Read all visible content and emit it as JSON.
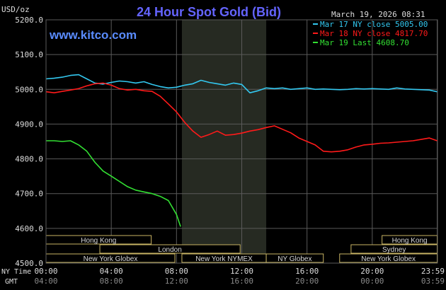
{
  "header": {
    "unit": "USD/oz",
    "title": "24 Hour Spot Gold (Bid)",
    "date": "March 19, 2026 08:31",
    "brand": "www.kitco.com"
  },
  "legend": [
    {
      "label": "Mar 17 NY close 5005.00",
      "color": "#33c8f0"
    },
    {
      "label": "Mar 18 NY close 4817.70",
      "color": "#ff1a1a"
    },
    {
      "label": "Mar 19 Last 4608.70",
      "color": "#33e033"
    }
  ],
  "time_axis": {
    "ny_label": "NY Time",
    "gmt_label": "GMT",
    "ny_ticks": [
      "00:00",
      "04:00",
      "08:00",
      "12:00",
      "16:00",
      "20:00",
      "23:59"
    ],
    "gmt_ticks": [
      "04:00",
      "08:00",
      "12:00",
      "16:00",
      "20:00",
      "00:00",
      "03:59"
    ]
  },
  "sessions": [
    {
      "label": "Hong Kong",
      "start": 0.0,
      "end": 6.45,
      "row": 0
    },
    {
      "label": "Hong Kong",
      "start": 20.6,
      "end": 23.98,
      "row": 0
    },
    {
      "label": "London",
      "start": 3.3,
      "end": 11.9,
      "row": 1
    },
    {
      "label": "Sydney",
      "start": 18.7,
      "end": 23.98,
      "row": 1
    },
    {
      "label": "New York Globex",
      "start": 0.0,
      "end": 7.9,
      "row": 2
    },
    {
      "label": "New York NYMEX",
      "start": 8.33,
      "end": 13.5,
      "row": 2
    },
    {
      "label": "NY Globex",
      "start": 13.5,
      "end": 17.0,
      "row": 2
    },
    {
      "label": "New York Globex",
      "start": 18.0,
      "end": 23.98,
      "row": 2
    }
  ],
  "colors": {
    "background": "#000000",
    "grid": "#5a5a5a",
    "shade": "#262a22",
    "axis_text": "#dddddd",
    "title": "#6464ff",
    "brand": "#5a8cff",
    "session_border": "#c8b464",
    "session_text": "#d8d8d8"
  },
  "chart_data": {
    "type": "line",
    "xlabel": "NY Time",
    "ylabel": "USD/oz",
    "ylim": [
      4500,
      5200
    ],
    "xlim": [
      0,
      24
    ],
    "y_ticks": [
      "5200.0",
      "5100.0",
      "5000.0",
      "4900.0",
      "4800.0",
      "4700.0",
      "4600.0",
      "4500.0"
    ],
    "shaded_hours": [
      8.33,
      13.5
    ],
    "grid": true,
    "legend_position": "top-right",
    "series": [
      {
        "name": "Mar 17 NY close 5005.00",
        "color": "#33c8f0",
        "x": [
          0,
          0.5,
          1.0,
          1.5,
          2.0,
          2.5,
          3.0,
          3.5,
          4.0,
          4.5,
          5.0,
          5.5,
          6.0,
          6.5,
          7.0,
          7.5,
          8.0,
          8.5,
          9.0,
          9.5,
          10.0,
          10.5,
          11.0,
          11.5,
          12.0,
          12.5,
          13.0,
          13.5,
          14.0,
          14.5,
          15.0,
          15.5,
          16.0,
          16.5,
          17.0,
          17.5,
          18.0,
          18.5,
          19.0,
          19.5,
          20.0,
          20.5,
          21.0,
          21.5,
          22.0,
          22.5,
          23.0,
          23.5,
          23.98
        ],
        "y": [
          5030,
          5032,
          5035,
          5040,
          5042,
          5030,
          5018,
          5015,
          5020,
          5024,
          5022,
          5018,
          5022,
          5014,
          5008,
          5004,
          5006,
          5012,
          5016,
          5026,
          5020,
          5016,
          5012,
          5018,
          5014,
          4990,
          4996,
          5004,
          5002,
          5004,
          5000,
          5002,
          5004,
          5000,
          5001,
          5000,
          4999,
          5000,
          5002,
          5001,
          5002,
          5001,
          5000,
          5004,
          5001,
          5000,
          4999,
          4998,
          4993
        ]
      },
      {
        "name": "Mar 18 NY close 4817.70",
        "color": "#ff1a1a",
        "x": [
          0,
          0.5,
          1.0,
          1.5,
          2.0,
          2.5,
          3.0,
          3.5,
          4.0,
          4.5,
          5.0,
          5.5,
          6.0,
          6.5,
          7.0,
          7.5,
          8.0,
          8.5,
          9.0,
          9.5,
          10.0,
          10.5,
          11.0,
          11.5,
          12.0,
          12.5,
          13.0,
          13.5,
          14.0,
          14.5,
          15.0,
          15.5,
          16.0,
          16.5,
          17.0,
          17.5,
          18.0,
          18.5,
          19.0,
          19.5,
          20.0,
          20.5,
          21.0,
          21.5,
          22.0,
          22.5,
          23.0,
          23.5,
          23.98
        ],
        "y": [
          4993,
          4990,
          4994,
          4998,
          5002,
          5010,
          5016,
          5018,
          5012,
          5002,
          4998,
          5000,
          4996,
          4994,
          4980,
          4958,
          4935,
          4905,
          4880,
          4862,
          4870,
          4880,
          4868,
          4870,
          4874,
          4880,
          4884,
          4890,
          4895,
          4885,
          4875,
          4860,
          4850,
          4840,
          4822,
          4820,
          4822,
          4826,
          4834,
          4840,
          4842,
          4845,
          4846,
          4848,
          4850,
          4852,
          4856,
          4860,
          4852
        ]
      },
      {
        "name": "Mar 19 Last 4608.70",
        "color": "#33e033",
        "x": [
          0,
          0.5,
          1.0,
          1.5,
          2.0,
          2.5,
          3.0,
          3.5,
          4.0,
          4.5,
          5.0,
          5.5,
          6.0,
          6.5,
          7.0,
          7.5,
          8.0,
          8.25
        ],
        "y": [
          4852,
          4852,
          4850,
          4852,
          4840,
          4822,
          4790,
          4765,
          4750,
          4735,
          4720,
          4710,
          4705,
          4700,
          4692,
          4680,
          4640,
          4605
        ]
      }
    ]
  }
}
